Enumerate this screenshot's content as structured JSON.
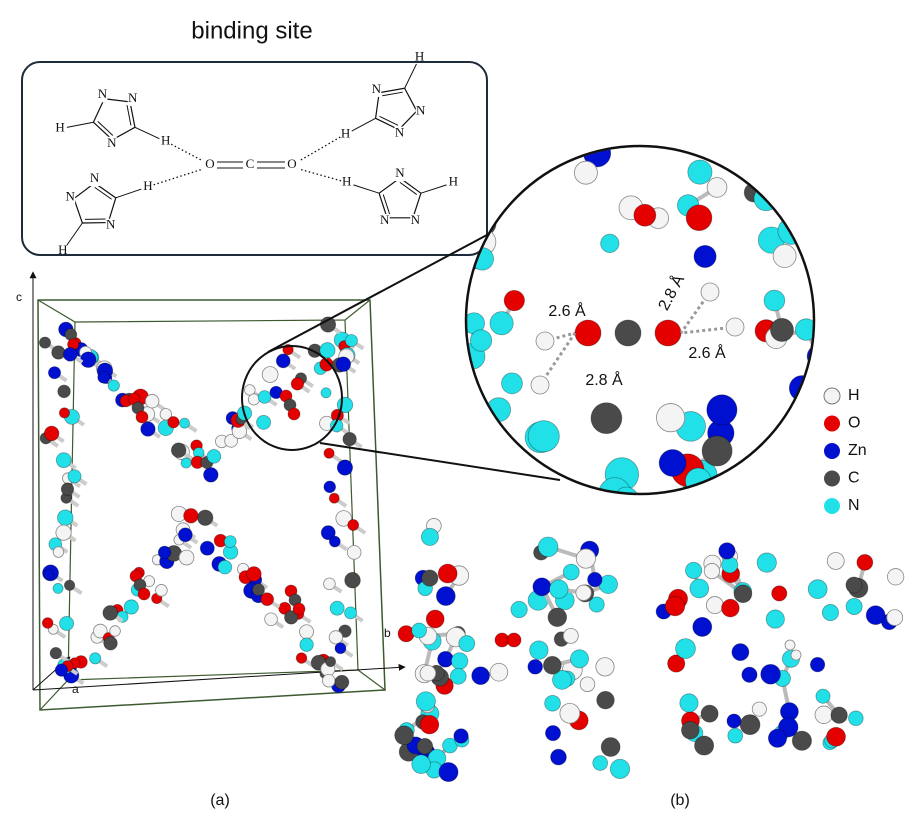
{
  "binding_site": {
    "title": "binding site",
    "center": [
      "O",
      "C",
      "O"
    ],
    "triazoles": [
      {
        "atoms": [
          "N",
          "N",
          "H",
          "N",
          "H"
        ]
      },
      {
        "atoms": [
          "N",
          "N",
          "H",
          "N",
          "H"
        ]
      },
      {
        "atoms": [
          "N",
          "N",
          "H",
          "N",
          "H"
        ]
      },
      {
        "atoms": [
          "N",
          "N",
          "H",
          "N",
          "H"
        ]
      }
    ]
  },
  "zoom": {
    "distances": [
      "2.6 Å",
      "2.8 Å",
      "2.6 Å",
      "2.8 Å"
    ]
  },
  "legend": [
    {
      "symbol": "H",
      "color": "#f4f4f4"
    },
    {
      "symbol": "O",
      "color": "#e50000"
    },
    {
      "symbol": "Zn",
      "color": "#0010d0"
    },
    {
      "symbol": "C",
      "color": "#4a4a4a"
    },
    {
      "symbol": "N",
      "color": "#22e0e8"
    }
  ],
  "axes": [
    "c",
    "b",
    "a"
  ],
  "panels": [
    "(a)",
    "(b)"
  ]
}
